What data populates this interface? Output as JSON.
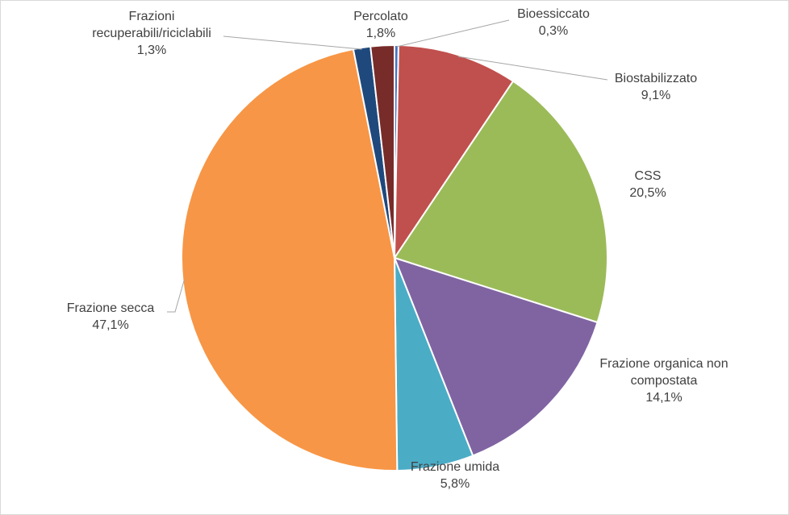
{
  "chart_data": {
    "type": "pie",
    "title": "",
    "slices": [
      {
        "name": "Bioessiccato",
        "value": 0.3,
        "value_label": "0,3%",
        "color": "#4472c4"
      },
      {
        "name": "Biostabilizzato",
        "value": 9.1,
        "value_label": "9,1%",
        "color": "#c0504d"
      },
      {
        "name": "CSS",
        "value": 20.5,
        "value_label": "20,5%",
        "color": "#9bbb59"
      },
      {
        "name": "Frazione organica non compostata",
        "name_lines": [
          "Frazione organica non",
          "compostata"
        ],
        "value": 14.1,
        "value_label": "14,1%",
        "color": "#8064a2"
      },
      {
        "name": "Frazione umida",
        "value": 5.8,
        "value_label": "5,8%",
        "color": "#4bacc6"
      },
      {
        "name": "Frazione secca",
        "value": 47.1,
        "value_label": "47,1%",
        "color": "#f79646"
      },
      {
        "name": "Frazioni recuperabili/riciclabili",
        "name_lines": [
          "Frazioni",
          "recuperabili/riciclabili"
        ],
        "value": 1.3,
        "value_label": "1,3%",
        "color": "#1f497d"
      },
      {
        "name": "Percolato",
        "value": 1.8,
        "value_label": "1,8%",
        "color": "#772c2a"
      }
    ],
    "legend": "none",
    "label_position": "outside-with-leader-lines"
  }
}
